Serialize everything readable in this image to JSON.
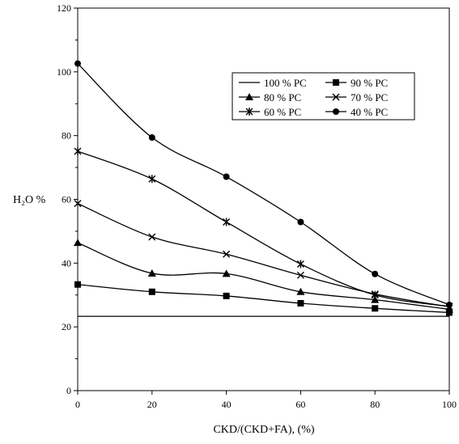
{
  "chart_data": {
    "type": "line",
    "x": [
      0,
      20,
      40,
      60,
      80,
      100
    ],
    "series": [
      {
        "name": "100 % PC",
        "marker": "none",
        "values": [
          23.3,
          23.3,
          23.3,
          23.3,
          23.3,
          23.3
        ]
      },
      {
        "name": "90 % PC",
        "marker": "square",
        "values": [
          33.3,
          31.0,
          29.7,
          27.4,
          25.8,
          24.5
        ]
      },
      {
        "name": "80 % PC",
        "marker": "triangle",
        "values": [
          46.4,
          36.8,
          36.7,
          31.0,
          28.5,
          25.5
        ]
      },
      {
        "name": "70 % PC",
        "marker": "x",
        "values": [
          58.7,
          48.2,
          42.8,
          36.2,
          30.3,
          26.3
        ]
      },
      {
        "name": "60 % PC",
        "marker": "star",
        "values": [
          75.1,
          66.4,
          52.9,
          39.7,
          30.0,
          26.4
        ]
      },
      {
        "name": "40 % PC",
        "marker": "circle",
        "values": [
          102.6,
          79.4,
          67.1,
          52.9,
          36.6,
          26.9
        ]
      }
    ],
    "xlabel": "CKD/(CKD+FA), (%)",
    "ylabel": "H₂O %",
    "xlim": [
      0,
      100
    ],
    "ylim": [
      0,
      120
    ],
    "xticks": [
      "0",
      "20",
      "40",
      "60",
      "80",
      "100"
    ],
    "yticks": [
      "0",
      "20",
      "40",
      "60",
      "80",
      "100",
      "120"
    ],
    "grid": false,
    "legend_position": "top-right (inside plot)",
    "line_color": "#000000"
  }
}
